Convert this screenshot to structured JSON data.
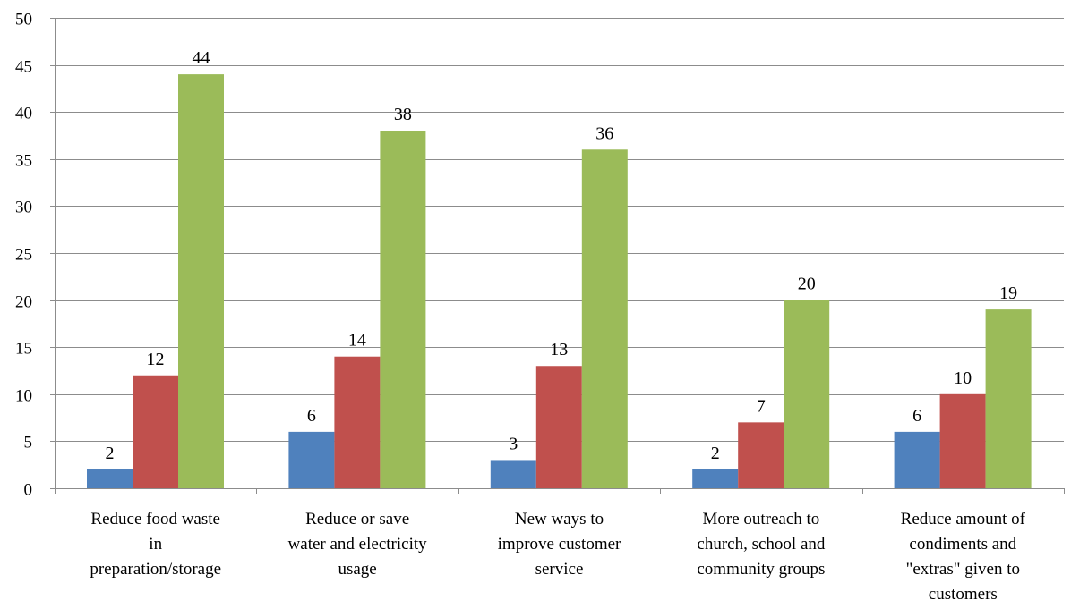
{
  "chart_data": {
    "type": "bar",
    "categories": [
      [
        "Reduce food waste",
        "in",
        "preparation/storage"
      ],
      [
        "Reduce or save",
        "water and electricity",
        "usage"
      ],
      [
        "New ways to",
        "improve customer",
        "service"
      ],
      [
        "More outreach to",
        "church, school and",
        "community groups"
      ],
      [
        "Reduce amount of",
        "condiments and",
        "\"extras\" given to",
        "customers"
      ]
    ],
    "series": [
      {
        "color": "#4f81bd",
        "values": [
          2,
          6,
          3,
          2,
          6
        ]
      },
      {
        "color": "#c0504d",
        "values": [
          12,
          14,
          13,
          7,
          10
        ]
      },
      {
        "color": "#9bbb59",
        "values": [
          44,
          38,
          36,
          20,
          19
        ]
      }
    ],
    "ylim": [
      0,
      50
    ],
    "yticks": [
      0,
      5,
      10,
      15,
      20,
      25,
      30,
      35,
      40,
      45,
      50
    ],
    "grid": true,
    "legend": "none",
    "data_labels": true
  }
}
